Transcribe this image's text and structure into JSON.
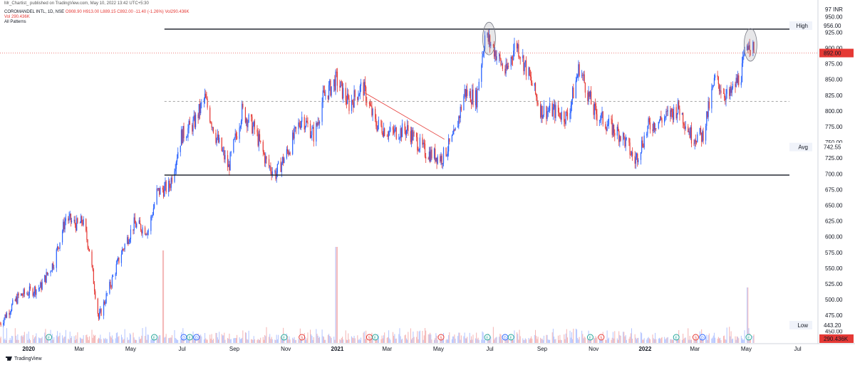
{
  "header": {
    "publisher": "Mr_Chartist_ published on TradingView.com, May 10, 2022 13:42 UTC+5:30",
    "symbol": "COROMANDEL INTL, 1D, NSE",
    "ohlc": "O908.90 H913.00 L889.15 C892.00 -11.40 (-1.26%) Vol290.436K",
    "volume": "Vol 290.436K",
    "indicator": "All Patterns"
  },
  "footer": {
    "brand": "TradingView"
  },
  "chart_data": {
    "type": "candlestick",
    "symbol": "COROMANDEL INTL",
    "interval": "1D",
    "exchange": "NSE",
    "currency": "INR",
    "y_unit_label": "97 INR",
    "ylim": [
      430,
      965
    ],
    "y_ticks": [
      950,
      925,
      900,
      875,
      850,
      825,
      800,
      775,
      750,
      725,
      700,
      675,
      650,
      625,
      600,
      575,
      550,
      525,
      500,
      475,
      450
    ],
    "x_ticks": [
      {
        "label": "2020",
        "date": "2020-01-01",
        "bold": true
      },
      {
        "label": "Mar",
        "date": "2020-03-01",
        "bold": false
      },
      {
        "label": "May",
        "date": "2020-05-01",
        "bold": false
      },
      {
        "label": "Jul",
        "date": "2020-07-01",
        "bold": false
      },
      {
        "label": "Sep",
        "date": "2020-09-01",
        "bold": false
      },
      {
        "label": "Nov",
        "date": "2020-11-01",
        "bold": false
      },
      {
        "label": "2021",
        "date": "2021-01-01",
        "bold": true
      },
      {
        "label": "Mar",
        "date": "2021-03-01",
        "bold": false
      },
      {
        "label": "May",
        "date": "2021-05-01",
        "bold": false
      },
      {
        "label": "Jul",
        "date": "2021-07-01",
        "bold": false
      },
      {
        "label": "Sep",
        "date": "2021-09-01",
        "bold": false
      },
      {
        "label": "Nov",
        "date": "2021-11-01",
        "bold": false
      },
      {
        "label": "2022",
        "date": "2022-01-01",
        "bold": true
      },
      {
        "label": "Mar",
        "date": "2022-03-01",
        "bold": false
      },
      {
        "label": "May",
        "date": "2022-05-01",
        "bold": false
      },
      {
        "label": "Jul",
        "date": "2022-07-01",
        "bold": false
      }
    ],
    "xlim": [
      "2019-11-28",
      "2022-07-25"
    ],
    "price_path": [
      [
        "2019-11-28",
        462
      ],
      [
        "2019-12-20",
        505
      ],
      [
        "2020-01-15",
        520
      ],
      [
        "2020-01-31",
        560
      ],
      [
        "2020-02-14",
        630
      ],
      [
        "2020-02-28",
        618
      ],
      [
        "2020-03-05",
        625
      ],
      [
        "2020-03-13",
        580
      ],
      [
        "2020-03-24",
        470
      ],
      [
        "2020-04-06",
        520
      ],
      [
        "2020-04-20",
        575
      ],
      [
        "2020-05-05",
        620
      ],
      [
        "2020-05-22",
        610
      ],
      [
        "2020-06-01",
        670
      ],
      [
        "2020-06-16",
        680
      ],
      [
        "2020-06-30",
        760
      ],
      [
        "2020-07-15",
        780
      ],
      [
        "2020-07-28",
        820
      ],
      [
        "2020-08-10",
        760
      ],
      [
        "2020-08-25",
        710
      ],
      [
        "2020-09-10",
        800
      ],
      [
        "2020-09-25",
        770
      ],
      [
        "2020-10-10",
        715
      ],
      [
        "2020-10-20",
        700
      ],
      [
        "2020-11-05",
        740
      ],
      [
        "2020-11-20",
        790
      ],
      [
        "2020-12-05",
        760
      ],
      [
        "2020-12-15",
        820
      ],
      [
        "2020-12-31",
        850
      ],
      [
        "2021-01-15",
        810
      ],
      [
        "2021-01-31",
        840
      ],
      [
        "2021-02-15",
        780
      ],
      [
        "2021-03-05",
        765
      ],
      [
        "2021-03-25",
        770
      ],
      [
        "2021-04-15",
        735
      ],
      [
        "2021-05-05",
        725
      ],
      [
        "2021-05-20",
        760
      ],
      [
        "2021-06-01",
        830
      ],
      [
        "2021-06-15",
        820
      ],
      [
        "2021-06-25",
        920
      ],
      [
        "2021-07-05",
        900
      ],
      [
        "2021-07-20",
        860
      ],
      [
        "2021-08-01",
        910
      ],
      [
        "2021-08-15",
        860
      ],
      [
        "2021-08-31",
        800
      ],
      [
        "2021-09-15",
        800
      ],
      [
        "2021-10-01",
        790
      ],
      [
        "2021-10-15",
        870
      ],
      [
        "2021-11-01",
        800
      ],
      [
        "2021-11-20",
        775
      ],
      [
        "2021-12-05",
        760
      ],
      [
        "2021-12-20",
        720
      ],
      [
        "2022-01-05",
        775
      ],
      [
        "2022-01-25",
        790
      ],
      [
        "2022-02-10",
        805
      ],
      [
        "2022-02-25",
        760
      ],
      [
        "2022-03-10",
        760
      ],
      [
        "2022-03-25",
        850
      ],
      [
        "2022-04-10",
        820
      ],
      [
        "2022-04-25",
        860
      ],
      [
        "2022-05-04",
        915
      ],
      [
        "2022-05-10",
        892
      ]
    ],
    "last_close": 892.0,
    "last_volume_label": "290.436K",
    "high": {
      "label": "High",
      "value": 956.0
    },
    "low": {
      "label": "Low",
      "value": 443.2
    },
    "avg": {
      "label": "Avg",
      "value": 742.55
    },
    "price_labels": {
      "last": "892.00",
      "high": "956.00",
      "low": "443.20",
      "avg": "742.55",
      "volume": "290.436K"
    },
    "levels": {
      "resistance": 930,
      "support": 698,
      "mid_dotted": 815
    },
    "trendline": {
      "start": [
        "2021-02-01",
        830
      ],
      "end": [
        "2021-05-08",
        755
      ]
    },
    "highlight_ellipses": [
      {
        "date": "2021-06-30",
        "price": 915
      },
      {
        "date": "2022-05-06",
        "price": 905
      }
    ],
    "volume_spikes": [
      {
        "date": "2020-06-08",
        "value": 1300000
      },
      {
        "date": "2020-12-31",
        "value": 1350000
      },
      {
        "date": "2022-05-02",
        "value": 780000
      }
    ],
    "events": [
      {
        "date": "2020-01-25",
        "type": "E"
      },
      {
        "date": "2020-05-29",
        "type": "E"
      },
      {
        "date": "2020-07-03",
        "type": "D"
      },
      {
        "date": "2020-07-10",
        "type": "E"
      },
      {
        "date": "2020-07-18",
        "type": "D"
      },
      {
        "date": "2020-10-30",
        "type": "E"
      },
      {
        "date": "2020-11-20",
        "type": "S"
      },
      {
        "date": "2021-02-08",
        "type": "S"
      },
      {
        "date": "2021-02-15",
        "type": "E"
      },
      {
        "date": "2021-05-04",
        "type": "S"
      },
      {
        "date": "2021-06-28",
        "type": "E"
      },
      {
        "date": "2021-07-19",
        "type": "D"
      },
      {
        "date": "2021-07-26",
        "type": "E"
      },
      {
        "date": "2021-10-28",
        "type": "E"
      },
      {
        "date": "2021-11-10",
        "type": "S"
      },
      {
        "date": "2022-02-07",
        "type": "E"
      },
      {
        "date": "2022-03-02",
        "type": "S"
      },
      {
        "date": "2022-03-10",
        "type": "D"
      },
      {
        "date": "2022-05-04",
        "type": "E"
      }
    ],
    "colors": {
      "up": "#2962ff",
      "down": "#e53935",
      "last_label": "#e53935",
      "volume_up": "#b3c4ff",
      "volume_down": "#f4b3b3"
    },
    "grid": false,
    "log_scale": false
  }
}
